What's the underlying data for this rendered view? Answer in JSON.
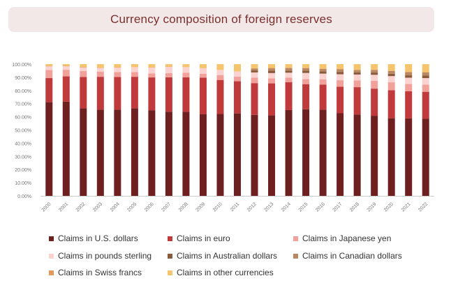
{
  "chart_data": {
    "type": "bar",
    "stacked": true,
    "title": "Currency composition of foreign reserves",
    "xlabel": "",
    "ylabel": "",
    "ylim": [
      0,
      100
    ],
    "y_ticks": [
      "0.00%",
      "10.00%",
      "20.00%",
      "30.00%",
      "40.00%",
      "50.00%",
      "60.00%",
      "70.00%",
      "80.00%",
      "90.00%",
      "100.00%"
    ],
    "grid": false,
    "legend_position": "bottom",
    "categories": [
      "2000",
      "2001",
      "2002",
      "2003",
      "2004",
      "2005",
      "2006",
      "2007",
      "2008",
      "2009",
      "2010",
      "2011",
      "2012",
      "2013",
      "2014",
      "2015",
      "2016",
      "2017",
      "2018",
      "2019",
      "2020",
      "2021",
      "2022"
    ],
    "series": [
      {
        "name": "Claims in U.S. dollars",
        "color": "#6e1f1f",
        "values": [
          71.1,
          71.5,
          66.5,
          65.4,
          65.5,
          66.5,
          65.0,
          63.9,
          63.8,
          62.1,
          62.2,
          62.6,
          61.5,
          61.2,
          65.1,
          65.7,
          65.4,
          62.7,
          61.8,
          60.8,
          58.9,
          58.8,
          58.5
        ]
      },
      {
        "name": "Claims in euro",
        "color": "#c0393b",
        "values": [
          18.3,
          19.2,
          23.8,
          25.0,
          24.7,
          23.9,
          24.9,
          26.1,
          26.2,
          27.7,
          25.8,
          24.4,
          24.1,
          24.2,
          21.2,
          19.1,
          19.1,
          20.2,
          20.7,
          20.6,
          21.3,
          20.6,
          20.5
        ]
      },
      {
        "name": "Claims in Japanese yen",
        "color": "#f2a19a",
        "values": [
          6.1,
          5.0,
          4.4,
          3.9,
          3.8,
          3.6,
          3.1,
          3.2,
          3.5,
          2.9,
          3.7,
          3.6,
          4.1,
          3.8,
          3.5,
          3.8,
          4.0,
          4.9,
          5.2,
          5.9,
          6.0,
          5.5,
          5.5
        ]
      },
      {
        "name": "Claims in pounds sterling",
        "color": "#fad3d0",
        "values": [
          2.8,
          2.7,
          2.8,
          2.8,
          3.4,
          3.6,
          4.4,
          4.7,
          4.2,
          4.2,
          3.9,
          3.8,
          4.0,
          4.0,
          3.7,
          4.7,
          4.3,
          4.5,
          4.4,
          4.6,
          4.7,
          4.8,
          4.9
        ]
      },
      {
        "name": "Claims in Australian dollars",
        "color": "#8a5a3c",
        "values": [
          0,
          0,
          0,
          0,
          0,
          0,
          0,
          0,
          0,
          0,
          0,
          0,
          1.5,
          1.8,
          1.6,
          1.8,
          1.7,
          1.8,
          1.6,
          1.7,
          1.8,
          1.8,
          1.9
        ]
      },
      {
        "name": "Claims in Canadian dollars",
        "color": "#b98762",
        "values": [
          0,
          0,
          0,
          0,
          0,
          0,
          0,
          0,
          0,
          0,
          0,
          0,
          1.4,
          1.8,
          1.9,
          1.8,
          1.9,
          2.0,
          1.8,
          1.9,
          2.1,
          2.4,
          2.4
        ]
      },
      {
        "name": "Claims in Swiss francs",
        "color": "#e8975a",
        "values": [
          0.3,
          0.3,
          0.4,
          0.2,
          0.2,
          0.1,
          0.2,
          0.2,
          0.1,
          0.1,
          0.1,
          0.1,
          0.2,
          0.3,
          0.3,
          0.3,
          0.2,
          0.2,
          0.1,
          0.2,
          0.2,
          0.2,
          0.2
        ]
      },
      {
        "name": "Claims in other currencies",
        "color": "#f6c46d",
        "values": [
          1.4,
          1.3,
          2.1,
          2.7,
          2.4,
          2.3,
          2.4,
          1.9,
          2.2,
          3.0,
          4.3,
          5.5,
          3.2,
          2.9,
          2.7,
          2.8,
          3.4,
          3.7,
          4.4,
          4.3,
          5.0,
          5.9,
          6.1
        ]
      }
    ]
  }
}
